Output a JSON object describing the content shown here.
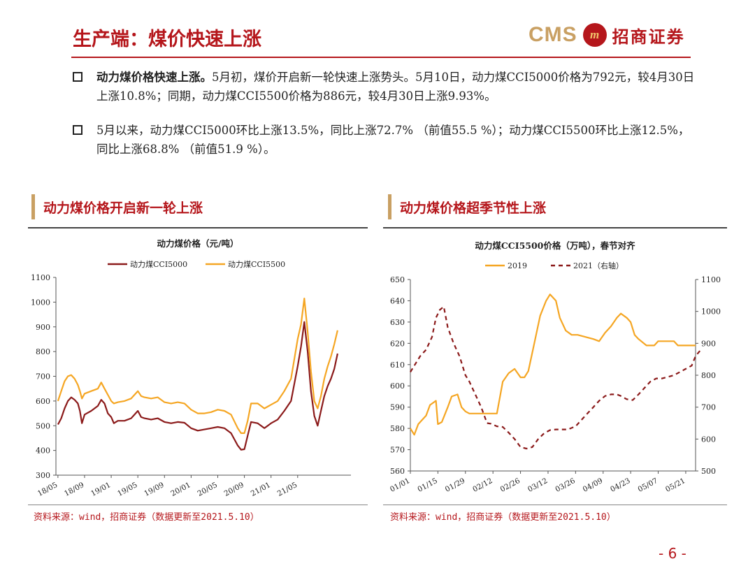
{
  "header": {
    "title": "生产端：煤价快速上涨",
    "logo_text": "CMS",
    "logo_mark": "m",
    "logo_cn": "招商证券"
  },
  "bullets": [
    {
      "bold": "动力煤价格快速上涨。",
      "text": "5月初，煤价开启新一轮快速上涨势头。5月10日，动力煤CCI5000价格为792元，较4月30日上涨10.8%；同期，动力煤CCI5500价格为886元，较4月30日上涨9.93%。"
    },
    {
      "bold": "",
      "text": "5月以来，动力煤CCI5000环比上涨13.5%，同比上涨72.7% （前值55.5 %）；动力煤CCI5500环比上涨12.5%，同比上涨68.8% （前值51.9 %）。"
    }
  ],
  "sections": {
    "left_title": "动力煤价格开启新一轮上涨",
    "right_title": "动力煤价格超季节性上涨"
  },
  "sources": {
    "left": "资料来源：wind，招商证券（数据更新至2021.5.10）",
    "right": "资料来源：wind，招商证券（数据更新至2021.5.10）"
  },
  "page_number": "- 6 -",
  "colors": {
    "brand_red": "#b5161b",
    "gold": "#c9a063",
    "series_dark": "#8b1a1a",
    "series_orange": "#f5a623"
  },
  "chart_data": [
    {
      "type": "line",
      "title": "动力煤价格（元/吨）",
      "xlabel": "",
      "ylabel": "",
      "ylim": [
        300,
        1100
      ],
      "yticks": [
        300,
        400,
        500,
        600,
        700,
        800,
        900,
        1000,
        1100
      ],
      "x_tick_labels": [
        "18/05",
        "18/09",
        "19/01",
        "19/05",
        "19/09",
        "20/01",
        "20/05",
        "20/09",
        "21/01",
        "21/05"
      ],
      "x_tick_index": [
        0,
        4,
        8,
        12,
        16,
        20,
        24,
        28,
        32,
        36
      ],
      "grid": false,
      "legend": "top-center",
      "series": [
        {
          "name": "动力煤CCI5000",
          "color": "#8b1a1a",
          "dash": "",
          "points": [
            [
              0,
              505
            ],
            [
              0.5,
              530
            ],
            [
              1,
              570
            ],
            [
              1.5,
              600
            ],
            [
              2,
              615
            ],
            [
              2.5,
              605
            ],
            [
              3,
              590
            ],
            [
              3.3,
              560
            ],
            [
              3.6,
              510
            ],
            [
              4,
              545
            ],
            [
              5,
              560
            ],
            [
              6,
              580
            ],
            [
              6.5,
              605
            ],
            [
              7,
              590
            ],
            [
              7.5,
              550
            ],
            [
              8,
              535
            ],
            [
              8.4,
              510
            ],
            [
              9,
              520
            ],
            [
              10,
              520
            ],
            [
              11,
              530
            ],
            [
              12,
              560
            ],
            [
              12.5,
              535
            ],
            [
              13,
              530
            ],
            [
              14,
              525
            ],
            [
              15,
              530
            ],
            [
              16,
              515
            ],
            [
              17,
              510
            ],
            [
              18,
              515
            ],
            [
              19,
              512
            ],
            [
              20,
              490
            ],
            [
              21,
              480
            ],
            [
              22,
              485
            ],
            [
              23,
              490
            ],
            [
              24,
              495
            ],
            [
              25,
              490
            ],
            [
              26,
              470
            ],
            [
              27,
              420
            ],
            [
              27.5,
              403
            ],
            [
              28,
              405
            ],
            [
              28.5,
              460
            ],
            [
              29,
              515
            ],
            [
              30,
              510
            ],
            [
              31,
              490
            ],
            [
              32,
              510
            ],
            [
              33,
              525
            ],
            [
              34,
              560
            ],
            [
              35,
              600
            ],
            [
              36,
              740
            ],
            [
              36.5,
              820
            ],
            [
              37,
              920
            ],
            [
              37.5,
              800
            ],
            [
              38,
              640
            ],
            [
              38.5,
              540
            ],
            [
              39,
              500
            ],
            [
              39.5,
              560
            ],
            [
              40,
              620
            ],
            [
              40.5,
              660
            ],
            [
              41,
              690
            ],
            [
              41.5,
              730
            ],
            [
              42,
              792
            ]
          ]
        },
        {
          "name": "动力煤CCI5500",
          "color": "#f5a623",
          "dash": "",
          "points": [
            [
              0,
              600
            ],
            [
              0.5,
              640
            ],
            [
              1,
              680
            ],
            [
              1.5,
              700
            ],
            [
              2,
              705
            ],
            [
              2.5,
              690
            ],
            [
              3,
              665
            ],
            [
              3.3,
              640
            ],
            [
              3.6,
              610
            ],
            [
              4,
              630
            ],
            [
              5,
              640
            ],
            [
              6,
              650
            ],
            [
              6.5,
              675
            ],
            [
              7,
              650
            ],
            [
              7.5,
              625
            ],
            [
              8,
              600
            ],
            [
              8.4,
              590
            ],
            [
              9,
              595
            ],
            [
              10,
              600
            ],
            [
              11,
              610
            ],
            [
              12,
              640
            ],
            [
              12.5,
              620
            ],
            [
              13,
              615
            ],
            [
              14,
              610
            ],
            [
              15,
              615
            ],
            [
              16,
              595
            ],
            [
              17,
              590
            ],
            [
              18,
              595
            ],
            [
              19,
              590
            ],
            [
              20,
              565
            ],
            [
              21,
              550
            ],
            [
              22,
              550
            ],
            [
              23,
              555
            ],
            [
              24,
              565
            ],
            [
              25,
              560
            ],
            [
              26,
              545
            ],
            [
              27,
              490
            ],
            [
              27.5,
              470
            ],
            [
              28,
              470
            ],
            [
              28.5,
              520
            ],
            [
              29,
              590
            ],
            [
              30,
              590
            ],
            [
              31,
              570
            ],
            [
              32,
              585
            ],
            [
              33,
              600
            ],
            [
              34,
              640
            ],
            [
              35,
              690
            ],
            [
              36,
              850
            ],
            [
              36.5,
              910
            ],
            [
              37,
              1015
            ],
            [
              37.5,
              880
            ],
            [
              38,
              720
            ],
            [
              38.5,
              600
            ],
            [
              39,
              570
            ],
            [
              39.5,
              620
            ],
            [
              40,
              690
            ],
            [
              40.5,
              740
            ],
            [
              41,
              780
            ],
            [
              41.5,
              830
            ],
            [
              42,
              886
            ]
          ]
        }
      ]
    },
    {
      "type": "line",
      "title": "动力煤CCI5500价格（万吨），春节对齐",
      "xlabel": "",
      "ylabel": "",
      "ylim": [
        560,
        650
      ],
      "yticks": [
        560,
        570,
        580,
        590,
        600,
        610,
        620,
        630,
        640,
        650
      ],
      "y2lim": [
        500,
        1100
      ],
      "y2ticks": [
        500,
        600,
        700,
        800,
        900,
        1000,
        1100
      ],
      "x_tick_labels": [
        "01/01",
        "01/15",
        "01/29",
        "02/12",
        "02/26",
        "03/12",
        "03/26",
        "04/09",
        "04/23",
        "05/07",
        "05/21"
      ],
      "x_tick_index": [
        0,
        14,
        28,
        42,
        56,
        70,
        84,
        98,
        112,
        126,
        140
      ],
      "grid": false,
      "legend": "top-center",
      "series": [
        {
          "name": "2019",
          "color": "#f5a623",
          "dash": "",
          "axis": "left",
          "points": [
            [
              0,
              580
            ],
            [
              2,
              577
            ],
            [
              4,
              582
            ],
            [
              8,
              586
            ],
            [
              10,
              591
            ],
            [
              13,
              593
            ],
            [
              14,
              582
            ],
            [
              16,
              583
            ],
            [
              19,
              590
            ],
            [
              21,
              595
            ],
            [
              24,
              596
            ],
            [
              26,
              590
            ],
            [
              28,
              588
            ],
            [
              30,
              587
            ],
            [
              36,
              587
            ],
            [
              44,
              587
            ],
            [
              47,
              602
            ],
            [
              50,
              606
            ],
            [
              53,
              608
            ],
            [
              56,
              604
            ],
            [
              58,
              604
            ],
            [
              60,
              607
            ],
            [
              63,
              620
            ],
            [
              66,
              633
            ],
            [
              69,
              640
            ],
            [
              71,
              643
            ],
            [
              74,
              640
            ],
            [
              76,
              632
            ],
            [
              79,
              626
            ],
            [
              82,
              624
            ],
            [
              85,
              624
            ],
            [
              89,
              623
            ],
            [
              93,
              622
            ],
            [
              96,
              621
            ],
            [
              99,
              625
            ],
            [
              102,
              628
            ],
            [
              105,
              632
            ],
            [
              107,
              634
            ],
            [
              110,
              632
            ],
            [
              112,
              630
            ],
            [
              114,
              624
            ],
            [
              116,
              622
            ],
            [
              120,
              619
            ],
            [
              124,
              619
            ],
            [
              126,
              621
            ],
            [
              134,
              621
            ],
            [
              136,
              619
            ],
            [
              145,
              619
            ]
          ]
        },
        {
          "name": "2021（右轴）",
          "color": "#8b1a1a",
          "dash": "6,5",
          "axis": "right",
          "points": [
            [
              0,
              810
            ],
            [
              2,
              830
            ],
            [
              5,
              860
            ],
            [
              8,
              880
            ],
            [
              11,
              920
            ],
            [
              13,
              980
            ],
            [
              15,
              1005
            ],
            [
              17,
              1015
            ],
            [
              19,
              950
            ],
            [
              22,
              900
            ],
            [
              25,
              860
            ],
            [
              28,
              800
            ],
            [
              30,
              780
            ],
            [
              33,
              740
            ],
            [
              36,
              700
            ],
            [
              39,
              650
            ],
            [
              41,
              648
            ],
            [
              44,
              640
            ],
            [
              47,
              638
            ],
            [
              50,
              620
            ],
            [
              53,
              600
            ],
            [
              56,
              575
            ],
            [
              59,
              570
            ],
            [
              62,
              575
            ],
            [
              65,
              600
            ],
            [
              68,
              618
            ],
            [
              71,
              628
            ],
            [
              74,
              630
            ],
            [
              77,
              630
            ],
            [
              80,
              630
            ],
            [
              84,
              640
            ],
            [
              87,
              660
            ],
            [
              90,
              680
            ],
            [
              93,
              700
            ],
            [
              96,
              720
            ],
            [
              99,
              735
            ],
            [
              102,
              740
            ],
            [
              105,
              740
            ],
            [
              107,
              735
            ],
            [
              110,
              725
            ],
            [
              113,
              722
            ],
            [
              116,
              740
            ],
            [
              119,
              760
            ],
            [
              122,
              780
            ],
            [
              125,
              790
            ],
            [
              128,
              790
            ],
            [
              131,
              795
            ],
            [
              134,
              800
            ],
            [
              137,
              810
            ],
            [
              140,
              820
            ],
            [
              143,
              830
            ],
            [
              145,
              860
            ],
            [
              147,
              875
            ],
            [
              148,
              885
            ]
          ]
        }
      ]
    }
  ]
}
